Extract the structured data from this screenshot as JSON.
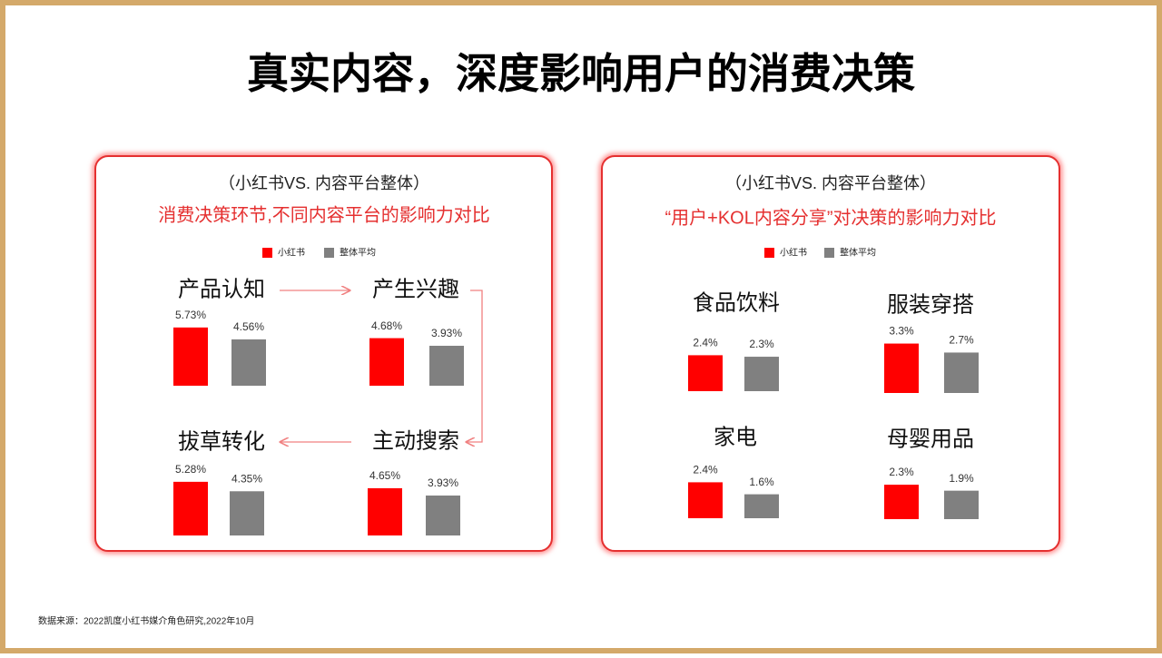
{
  "title": "真实内容，深度影响用户的消费决策",
  "source": "数据来源：2022凯度小红书媒介角色研究,2022年10月",
  "panels": [
    {
      "subtitle": "（小红书VS. 内容平台整体）",
      "heading": "消费决策环节,不同内容平台的影响力对比",
      "legend": [
        {
          "name": "小红书",
          "color": "#ff0000"
        },
        {
          "name": "整体平均",
          "color": "#808080"
        }
      ]
    },
    {
      "subtitle": "（小红书VS. 内容平台整体）",
      "heading": "“用户+KOL内容分享”对决策的影响力对比",
      "legend": [
        {
          "name": "小红书",
          "color": "#ff0000"
        },
        {
          "name": "整体平均",
          "color": "#808080"
        }
      ]
    }
  ],
  "chart_data": [
    {
      "type": "bar",
      "title": "产品认知",
      "values": [
        5.73,
        4.56
      ],
      "value_labels": [
        "5.73%",
        "4.56%"
      ]
    },
    {
      "type": "bar",
      "title": "产生兴趣",
      "values": [
        4.68,
        3.93
      ],
      "value_labels": [
        "4.68%",
        "3.93%"
      ]
    },
    {
      "type": "bar",
      "title": "拔草转化",
      "values": [
        5.28,
        4.35
      ],
      "value_labels": [
        "5.28%",
        "4.35%"
      ]
    },
    {
      "type": "bar",
      "title": "主动搜索",
      "values": [
        4.65,
        3.93
      ],
      "value_labels": [
        "4.65%",
        "3.93%"
      ]
    },
    {
      "type": "bar",
      "title": "食品饮料",
      "values": [
        2.4,
        2.3
      ],
      "value_labels": [
        "2.4%",
        "2.3%"
      ]
    },
    {
      "type": "bar",
      "title": "服装穿搭",
      "values": [
        3.3,
        2.7
      ],
      "value_labels": [
        "3.3%",
        "2.7%"
      ]
    },
    {
      "type": "bar",
      "title": "家电",
      "values": [
        2.4,
        1.6
      ],
      "value_labels": [
        "2.4%",
        "1.6%"
      ]
    },
    {
      "type": "bar",
      "title": "母婴用品",
      "values": [
        2.3,
        1.9
      ],
      "value_labels": [
        "2.3%",
        "1.9%"
      ]
    }
  ]
}
